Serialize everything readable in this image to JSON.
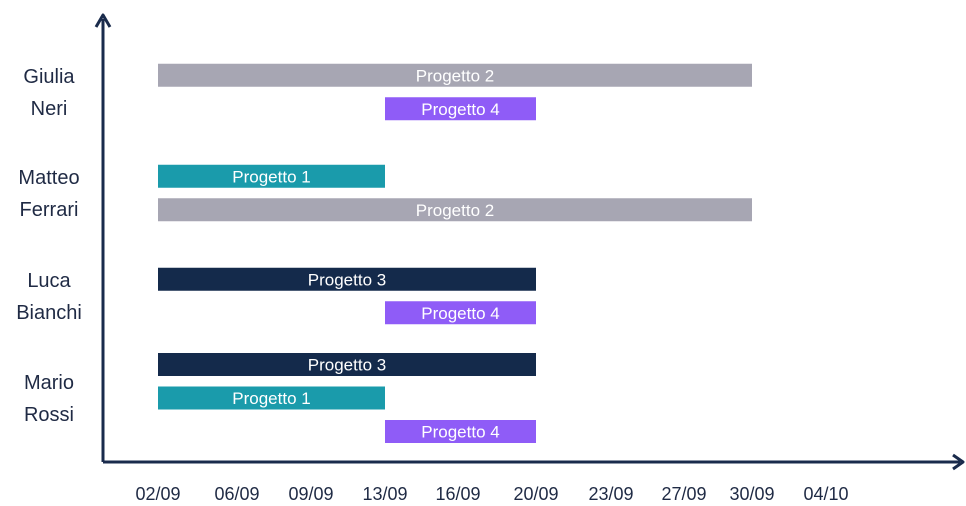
{
  "chart_data": {
    "type": "gantt",
    "title": "",
    "xlabel": "",
    "ylabel": "",
    "x_ticks": [
      "02/09",
      "06/09",
      "09/09",
      "13/09",
      "16/09",
      "20/09",
      "23/09",
      "27/09",
      "30/09",
      "04/10"
    ],
    "colors": {
      "Progetto 1": "#1a9bab",
      "Progetto 2": "#a7a6b3",
      "Progetto 3": "#142a4b",
      "Progetto 4": "#8f5cf7",
      "axis": "#1a2b4c"
    },
    "rows": [
      {
        "person": [
          "Giulia",
          "Neri"
        ],
        "tasks": [
          {
            "project": "Progetto 2",
            "start": "02/09",
            "end": "30/09"
          },
          {
            "project": "Progetto 4",
            "start": "13/09",
            "end": "20/09"
          }
        ]
      },
      {
        "person": [
          "Matteo",
          "Ferrari"
        ],
        "tasks": [
          {
            "project": "Progetto 1",
            "start": "02/09",
            "end": "13/09"
          },
          {
            "project": "Progetto 2",
            "start": "02/09",
            "end": "30/09"
          }
        ]
      },
      {
        "person": [
          "Luca",
          "Bianchi"
        ],
        "tasks": [
          {
            "project": "Progetto 3",
            "start": "02/09",
            "end": "20/09"
          },
          {
            "project": "Progetto 4",
            "start": "13/09",
            "end": "20/09"
          }
        ]
      },
      {
        "person": [
          "Mario",
          "Rossi"
        ],
        "tasks": [
          {
            "project": "Progetto 3",
            "start": "02/09",
            "end": "20/09"
          },
          {
            "project": "Progetto 1",
            "start": "02/09",
            "end": "13/09"
          },
          {
            "project": "Progetto 4",
            "start": "13/09",
            "end": "20/09"
          }
        ]
      }
    ]
  }
}
